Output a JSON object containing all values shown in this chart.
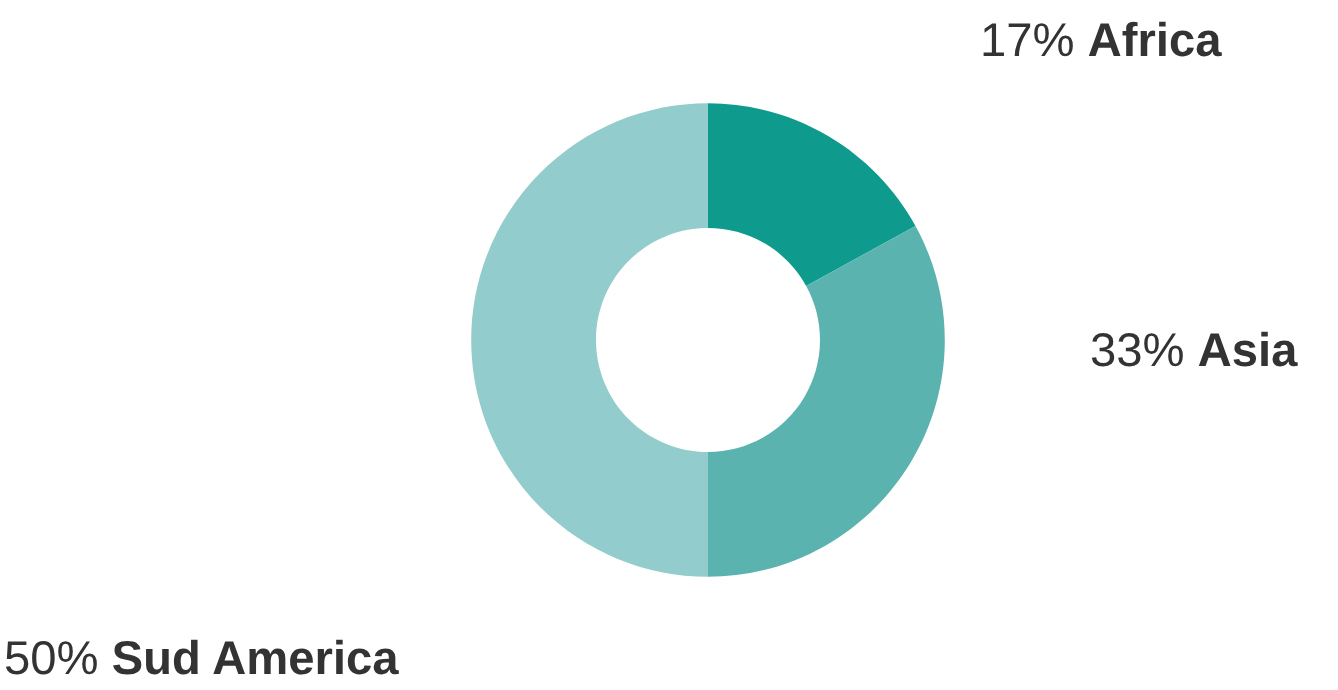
{
  "chart_data": {
    "type": "donut",
    "categories": [
      "Africa",
      "Asia",
      "Sud America"
    ],
    "values": [
      17,
      33,
      50
    ],
    "value_labels": [
      "17%",
      "33%",
      "50%"
    ],
    "colors": [
      "#0f9a8e",
      "#5bb3b0",
      "#92cccc"
    ]
  }
}
